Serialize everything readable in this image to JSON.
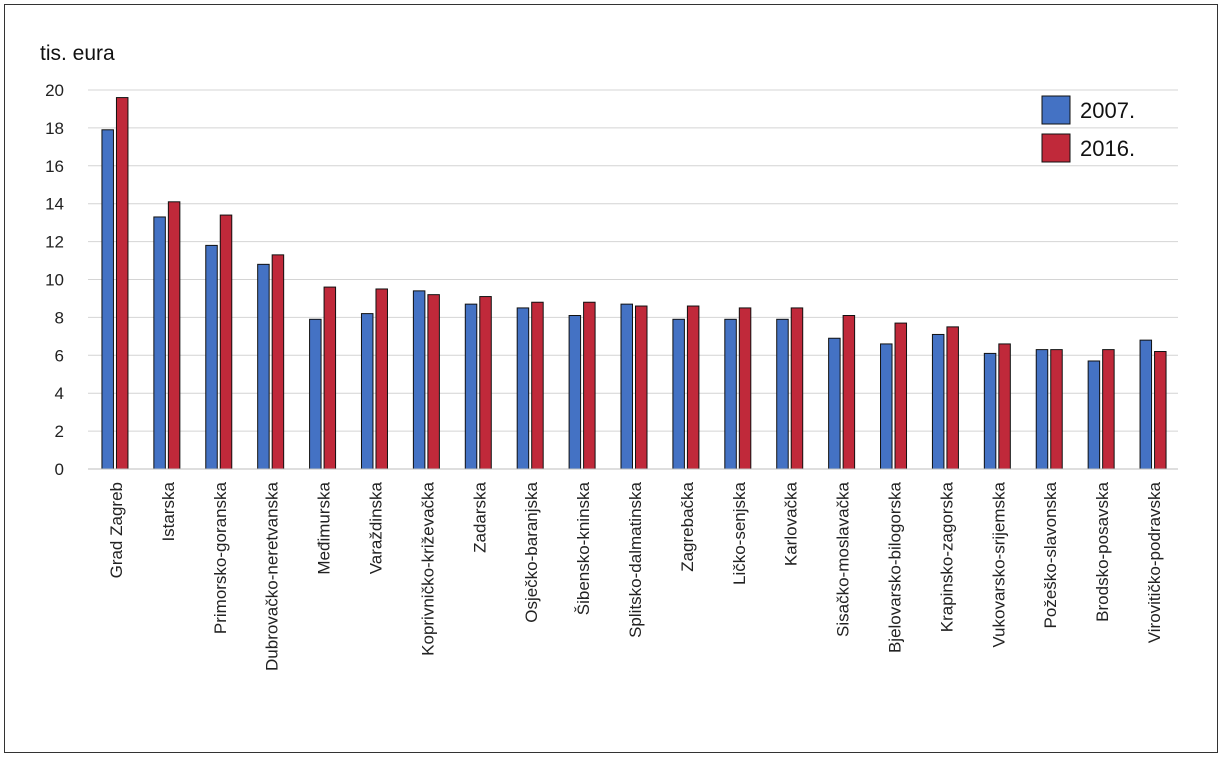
{
  "chart_data": {
    "type": "bar",
    "title": "",
    "ylabel": "tis. eura",
    "xlabel": "",
    "ylim": [
      0,
      20
    ],
    "yticks": [
      0,
      2,
      4,
      6,
      8,
      10,
      12,
      14,
      16,
      18,
      20
    ],
    "grid": true,
    "legend_position": "top-right",
    "categories": [
      "Grad Zagreb",
      "Istarska",
      "Primorsko-goranska",
      "Dubrovačko-neretvanska",
      "Međimurska",
      "Varaždinska",
      "Koprivničko-križevačka",
      "Zadarska",
      "Osječko-baranjska",
      "Šibensko-kninska",
      "Splitsko-dalmatinska",
      "Zagrebačka",
      "Ličko-senjska",
      "Karlovačka",
      "Sisačko-moslavačka",
      "Bjelovarsko-bilogorska",
      "Krapinsko-zagorska",
      "Vukovarsko-srijemska",
      "Požeško-slavonska",
      "Brodsko-posavska",
      "Virovitičko-podravska"
    ],
    "series": [
      {
        "name": "2007.",
        "color": "#4472C4",
        "values": [
          17.9,
          13.3,
          11.8,
          10.8,
          7.9,
          8.2,
          9.4,
          8.7,
          8.5,
          8.1,
          8.7,
          7.9,
          7.9,
          7.9,
          6.9,
          6.6,
          7.1,
          6.1,
          6.3,
          5.7,
          6.8
        ]
      },
      {
        "name": "2016.",
        "color": "#C0293A",
        "values": [
          19.6,
          14.1,
          13.4,
          11.3,
          9.6,
          9.5,
          9.2,
          9.1,
          8.8,
          8.8,
          8.6,
          8.6,
          8.5,
          8.5,
          8.1,
          7.7,
          7.5,
          6.6,
          6.3,
          6.3,
          6.2
        ]
      }
    ]
  }
}
